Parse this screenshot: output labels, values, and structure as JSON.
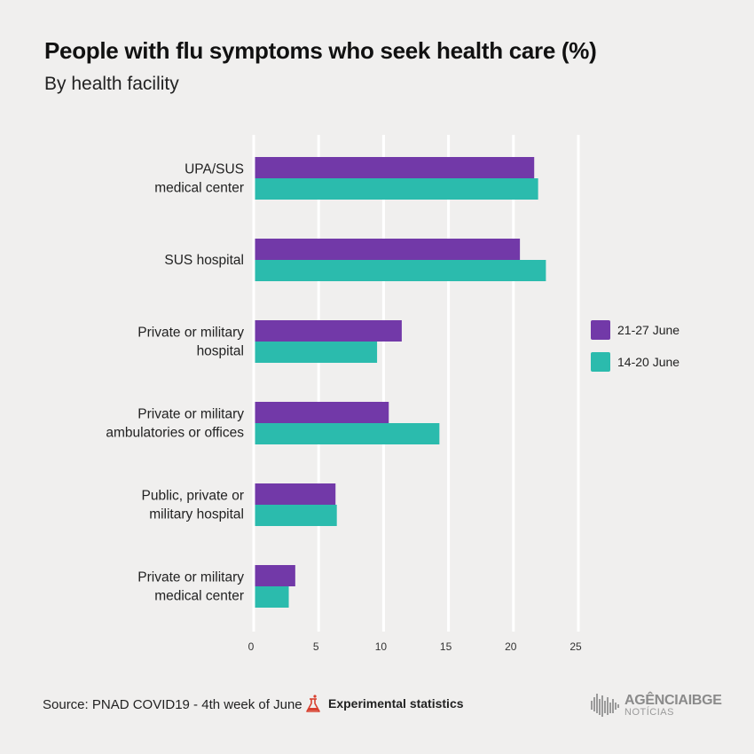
{
  "title": "People with flu symptoms who seek health care (%)",
  "subtitle": "By health facility",
  "footer": {
    "source": "Source: PNAD COVID19 - 4th week of June",
    "experimental": "Experimental statistics",
    "logo_main_a": "AGÊNCIA",
    "logo_main_b": "IBGE",
    "logo_sub": "NOTÍCIAS"
  },
  "colors": {
    "series_a": "#7239a8",
    "series_b": "#2bbbad",
    "grid": "#ffffff",
    "axis_text": "#333333"
  },
  "chart_data": {
    "type": "bar",
    "orientation": "horizontal",
    "title": "People with flu symptoms who seek health care (%)",
    "subtitle": "By health facility",
    "xlabel": "",
    "ylabel": "",
    "xlim": [
      0,
      25
    ],
    "xticks": [
      0,
      5,
      10,
      15,
      20,
      25
    ],
    "grid": true,
    "legend_position": "right",
    "categories": [
      [
        "UPA/SUS",
        "medical center"
      ],
      [
        "SUS hospital"
      ],
      [
        "Private or military",
        "hospital"
      ],
      [
        "Private or military",
        "ambulatories or offices"
      ],
      [
        "Public, private or",
        "military hospital"
      ],
      [
        "Private or military",
        "medical center"
      ]
    ],
    "series": [
      {
        "name": "21-27 June",
        "values": [
          21.6,
          20.5,
          11.4,
          10.4,
          6.3,
          3.2
        ]
      },
      {
        "name": "14-20 June",
        "values": [
          21.9,
          22.5,
          9.5,
          14.3,
          6.4,
          2.7
        ]
      }
    ]
  }
}
